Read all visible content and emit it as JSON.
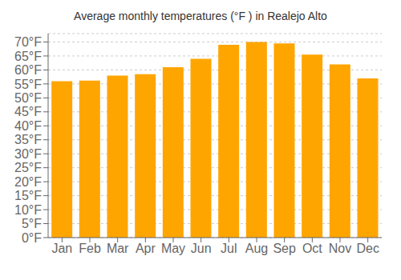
{
  "chart_data": {
    "type": "bar",
    "title": "Average monthly temperatures (°F ) in Realejo Alto",
    "categories": [
      "Jan",
      "Feb",
      "Mar",
      "Apr",
      "May",
      "Jun",
      "Jul",
      "Aug",
      "Sep",
      "Oct",
      "Nov",
      "Dec"
    ],
    "values": [
      56.0,
      56.2,
      58.0,
      58.5,
      61.0,
      64.0,
      69.0,
      70.0,
      69.5,
      65.5,
      62.0,
      57.0
    ],
    "color": "#FFA500",
    "ylim": [
      0,
      73
    ],
    "yticks": [
      {
        "value": 0,
        "label": "0°F"
      },
      {
        "value": 5,
        "label": "5°F"
      },
      {
        "value": 10,
        "label": "10°F"
      },
      {
        "value": 15,
        "label": "15°F"
      },
      {
        "value": 20,
        "label": "20°F"
      },
      {
        "value": 25,
        "label": "25°F"
      },
      {
        "value": 30,
        "label": "30°F"
      },
      {
        "value": 35,
        "label": "35°F"
      },
      {
        "value": 40,
        "label": "40°F"
      },
      {
        "value": 45,
        "label": "45°F"
      },
      {
        "value": 50,
        "label": "50°F"
      },
      {
        "value": 55,
        "label": "55°F"
      },
      {
        "value": 60,
        "label": "60°F"
      },
      {
        "value": 65,
        "label": "65°F"
      },
      {
        "value": 70,
        "label": "70°F"
      }
    ],
    "grid": true
  }
}
